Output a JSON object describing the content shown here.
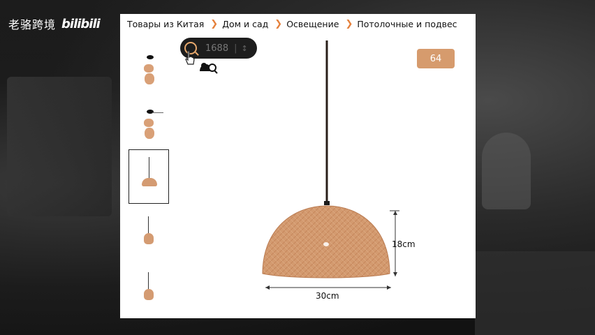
{
  "watermark": {
    "channel": "老骆跨境",
    "logo": "bilibili"
  },
  "breadcrumb": {
    "items": [
      "Товары из Китая",
      "Дом и сад",
      "Освещение",
      "Потолочные и подвес"
    ],
    "separator": "❯"
  },
  "overlay": {
    "search_label": "1688",
    "divider": "|",
    "tail": "↕"
  },
  "badge": {
    "label": "64"
  },
  "product_image": {
    "width_label": "30cm",
    "height_label": "18cm"
  },
  "colors": {
    "accent": "#e5813c",
    "shade": "#d49b72",
    "card_bg": "#ffffff",
    "backdrop": "#141414"
  },
  "icons": {
    "search": "search-icon",
    "cursor": "hand-cursor-icon",
    "photo_search": "image-search-icon"
  }
}
